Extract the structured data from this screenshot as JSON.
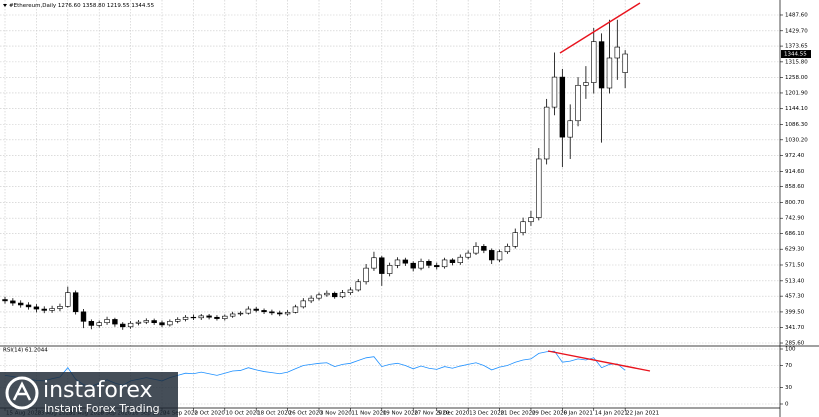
{
  "chart_data": [
    {
      "type": "candlestick",
      "title": "#Ethereum,Daily 1276.60 1358.80 1219.55 1344.55",
      "open": [
        445,
        440,
        432,
        425,
        418,
        410,
        405,
        412,
        420,
        470,
        400,
        365,
        350,
        360,
        372,
        355,
        345,
        358,
        362,
        368,
        360,
        352,
        365,
        372,
        380,
        378,
        385,
        380,
        375,
        384,
        392,
        395,
        410,
        405,
        400,
        396,
        392,
        398,
        418,
        440,
        450,
        462,
        468,
        455,
        470,
        480,
        510,
        560,
        598,
        540,
        570,
        590,
        578,
        560,
        585,
        570,
        565,
        590,
        580,
        600,
        615,
        640,
        625,
        590,
        620,
        640,
        690,
        730,
        745,
        960,
        1150,
        1260,
        1040,
        1100,
        1230,
        1240,
        1390,
        1220,
        1330,
        1276.6
      ],
      "high": [
        455,
        450,
        442,
        435,
        428,
        420,
        422,
        430,
        492,
        478,
        410,
        372,
        368,
        382,
        378,
        362,
        366,
        370,
        376,
        375,
        368,
        372,
        380,
        388,
        390,
        392,
        392,
        388,
        390,
        400,
        402,
        420,
        418,
        412,
        408,
        404,
        406,
        426,
        450,
        460,
        470,
        478,
        474,
        480,
        490,
        520,
        575,
        620,
        605,
        580,
        600,
        598,
        585,
        595,
        592,
        580,
        598,
        596,
        610,
        625,
        655,
        648,
        632,
        628,
        650,
        705,
        745,
        770,
        1000,
        1180,
        1350,
        1290,
        1160,
        1260,
        1300,
        1440,
        1420,
        1470,
        1470,
        1358.8
      ],
      "low": [
        430,
        422,
        415,
        408,
        398,
        395,
        396,
        402,
        415,
        390,
        340,
        336,
        342,
        352,
        345,
        334,
        338,
        350,
        355,
        352,
        344,
        346,
        358,
        365,
        370,
        370,
        372,
        368,
        368,
        378,
        385,
        390,
        398,
        392,
        388,
        384,
        386,
        394,
        412,
        432,
        442,
        455,
        448,
        450,
        462,
        474,
        500,
        550,
        495,
        530,
        560,
        568,
        548,
        552,
        560,
        555,
        558,
        570,
        572,
        592,
        608,
        615,
        575,
        582,
        612,
        632,
        680,
        715,
        735,
        940,
        1120,
        930,
        960,
        1080,
        1180,
        1200,
        1020,
        1200,
        1250,
        1219.55
      ],
      "close": [
        440,
        432,
        425,
        418,
        410,
        405,
        412,
        420,
        470,
        400,
        365,
        350,
        360,
        372,
        355,
        345,
        358,
        362,
        368,
        360,
        352,
        365,
        372,
        380,
        378,
        385,
        380,
        375,
        384,
        392,
        395,
        410,
        405,
        400,
        396,
        392,
        398,
        418,
        440,
        450,
        462,
        468,
        455,
        470,
        480,
        510,
        560,
        598,
        540,
        570,
        590,
        578,
        560,
        585,
        570,
        565,
        590,
        580,
        600,
        615,
        640,
        625,
        590,
        620,
        640,
        690,
        730,
        745,
        960,
        1150,
        1260,
        1040,
        1100,
        1230,
        1240,
        1390,
        1220,
        1330,
        1370,
        1344.55
      ],
      "ylim": [
        278.3,
        1535.2
      ],
      "yticks": [
        {
          "value": 285.6,
          "label": "285.60"
        },
        {
          "value": 341.7,
          "label": "341.70"
        },
        {
          "value": 399.5,
          "label": "399.50"
        },
        {
          "value": 457.3,
          "label": "457.30"
        },
        {
          "value": 513.4,
          "label": "513.40"
        },
        {
          "value": 571.5,
          "label": "571.50"
        },
        {
          "value": 629.3,
          "label": "629.30"
        },
        {
          "value": 686.1,
          "label": "686.10"
        },
        {
          "value": 742.9,
          "label": "742.90"
        },
        {
          "value": 800.7,
          "label": "800.70"
        },
        {
          "value": 858.6,
          "label": "858.60"
        },
        {
          "value": 914.6,
          "label": "914.60"
        },
        {
          "value": 972.4,
          "label": "972.40"
        },
        {
          "value": 1030.2,
          "label": "1030.20"
        },
        {
          "value": 1086.3,
          "label": "1086.30"
        },
        {
          "value": 1144.1,
          "label": "1144.10"
        },
        {
          "value": 1201.9,
          "label": "1201.90"
        },
        {
          "value": 1258,
          "label": "1258.00"
        },
        {
          "value": 1315.8,
          "label": "1315.80"
        },
        {
          "value": 1373.65,
          "label": "1373.65"
        },
        {
          "value": 1429.7,
          "label": "1429.70"
        },
        {
          "value": 1487.6,
          "label": "1487.60"
        }
      ],
      "last_price": {
        "value": 1344.55,
        "label": "1344.55"
      },
      "grid": true
    },
    {
      "type": "line",
      "title": "RSI(14) 61.2044",
      "color": "#1e90ff",
      "categories": [
        "15 Aug 2020",
        null,
        null,
        null,
        "23 Aug 2020",
        null,
        null,
        null,
        "31 Aug 2020",
        null,
        null,
        null,
        "8 Sep 2020",
        null,
        null,
        null,
        "16 Sep 2020",
        null,
        null,
        null,
        "24 Sep 2020",
        null,
        null,
        null,
        "2 Oct 2020",
        null,
        null,
        null,
        "10 Oct 2020",
        null,
        null,
        null,
        "18 Oct 2020",
        null,
        null,
        null,
        "26 Oct 2020",
        null,
        null,
        null,
        "3 Nov 2020",
        null,
        null,
        null,
        "11 Nov 2020",
        null,
        null,
        null,
        "19 Nov 2020",
        null,
        null,
        null,
        "27 Nov 2020",
        null,
        null,
        "5 Dec 2020",
        null,
        null,
        null,
        "13 Dec 2020",
        null,
        null,
        null,
        "21 Dec 2020",
        null,
        null,
        null,
        "29 Dec 2020",
        null,
        null,
        null,
        "6 Jan 2021",
        null,
        null,
        null,
        "14 Jan 2021",
        null,
        null,
        null,
        "22 Jan 2021"
      ],
      "values": [
        52,
        50,
        47,
        45,
        43,
        42,
        46,
        49,
        66,
        45,
        35,
        32,
        38,
        44,
        38,
        34,
        42,
        45,
        48,
        45,
        42,
        48,
        52,
        56,
        55,
        58,
        55,
        52,
        56,
        60,
        61,
        66,
        62,
        59,
        57,
        55,
        58,
        64,
        70,
        72,
        74,
        75,
        68,
        72,
        74,
        79,
        84,
        86,
        68,
        72,
        74,
        70,
        64,
        69,
        65,
        63,
        68,
        65,
        69,
        72,
        75,
        70,
        62,
        67,
        70,
        76,
        80,
        82,
        92,
        95,
        96,
        76,
        78,
        82,
        80,
        84,
        66,
        72,
        73,
        61.2044
      ],
      "ylim": [
        0,
        100
      ],
      "yticks": [
        0,
        30,
        70,
        100
      ],
      "grid": true
    }
  ],
  "watermark": {
    "brand": "instaforex",
    "tagline": "Instant Forex Trading"
  }
}
